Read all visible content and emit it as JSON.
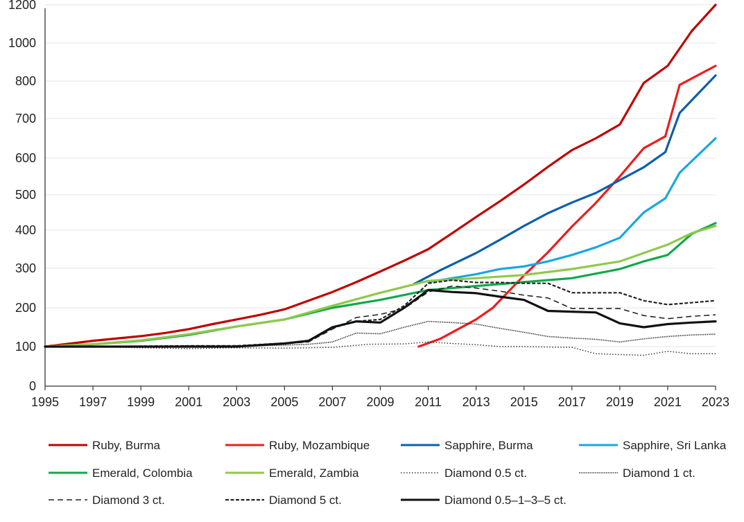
{
  "chart_data": {
    "type": "line",
    "title": "",
    "xlabel": "",
    "ylabel": "",
    "xlim": [
      1995,
      2023
    ],
    "ylim": [
      0,
      1200
    ],
    "x_ticks": [
      "1995",
      "1997",
      "1999",
      "2001",
      "2003",
      "2005",
      "2007",
      "2009",
      "2011",
      "2013",
      "2015",
      "2017",
      "2019",
      "2021",
      "2023"
    ],
    "y_ticks": [
      "0",
      "100",
      "200",
      "300",
      "400",
      "500",
      "600",
      "700",
      "800",
      "1000",
      "1200"
    ],
    "grid": "horizontal",
    "legend_position": "bottom",
    "series": [
      {
        "name": "Ruby, Burma",
        "color": "#c00000",
        "style": "solid",
        "width": 3.2,
        "points": [
          [
            1995,
            100
          ],
          [
            1997,
            115
          ],
          [
            1999,
            127
          ],
          [
            2000,
            135
          ],
          [
            2001,
            145
          ],
          [
            2002,
            158
          ],
          [
            2003,
            170
          ],
          [
            2004,
            182
          ],
          [
            2005,
            196
          ],
          [
            2006,
            218
          ],
          [
            2007,
            240
          ],
          [
            2008,
            265
          ],
          [
            2009,
            292
          ],
          [
            2010,
            320
          ],
          [
            2011,
            350
          ],
          [
            2012,
            392
          ],
          [
            2013,
            437
          ],
          [
            2014,
            482
          ],
          [
            2015,
            528
          ],
          [
            2016,
            576
          ],
          [
            2017,
            620
          ],
          [
            2018,
            650
          ],
          [
            2019,
            685
          ],
          [
            2020,
            795
          ],
          [
            2021,
            880
          ],
          [
            2022,
            1062
          ],
          [
            2023,
            1200
          ]
        ]
      },
      {
        "name": "Ruby, Mozambique",
        "color": "#ee1c1c",
        "style": "solid",
        "width": 3.2,
        "points": [
          [
            2010.6,
            100
          ],
          [
            2011.5,
            120
          ],
          [
            2013,
            170
          ],
          [
            2013.7,
            200
          ],
          [
            2015,
            282
          ],
          [
            2016,
            342
          ],
          [
            2017,
            410
          ],
          [
            2018,
            477
          ],
          [
            2019,
            550
          ],
          [
            2020,
            625
          ],
          [
            2020.9,
            655
          ],
          [
            2021.5,
            790
          ],
          [
            2023,
            880
          ]
        ]
      },
      {
        "name": "Sapphire, Burma",
        "color": "#0b5fad",
        "style": "solid",
        "width": 3.2,
        "points": [
          [
            2010.4,
            260
          ],
          [
            2011.5,
            295
          ],
          [
            2013,
            340
          ],
          [
            2014,
            375
          ],
          [
            2015,
            412
          ],
          [
            2016,
            448
          ],
          [
            2017,
            478
          ],
          [
            2018,
            505
          ],
          [
            2019,
            540
          ],
          [
            2020,
            575
          ],
          [
            2020.9,
            615
          ],
          [
            2021.5,
            715
          ],
          [
            2023,
            830
          ]
        ]
      },
      {
        "name": "Sapphire, Sri Lanka",
        "color": "#1aa6e0",
        "style": "solid",
        "width": 3.2,
        "points": [
          [
            2011,
            265
          ],
          [
            2012,
            275
          ],
          [
            2013,
            285
          ],
          [
            2014,
            298
          ],
          [
            2015,
            305
          ],
          [
            2016,
            318
          ],
          [
            2017,
            335
          ],
          [
            2018,
            355
          ],
          [
            2019,
            380
          ],
          [
            2020,
            450
          ],
          [
            2020.9,
            490
          ],
          [
            2021.5,
            560
          ],
          [
            2023,
            650
          ]
        ]
      },
      {
        "name": "Emerald, Colombia",
        "color": "#12a84a",
        "style": "solid",
        "width": 3.2,
        "points": [
          [
            1995,
            100
          ],
          [
            1997,
            106
          ],
          [
            1999,
            115
          ],
          [
            2001,
            130
          ],
          [
            2003,
            152
          ],
          [
            2005,
            170
          ],
          [
            2007,
            200
          ],
          [
            2009,
            220
          ],
          [
            2011,
            245
          ],
          [
            2013,
            255
          ],
          [
            2015,
            265
          ],
          [
            2017,
            275
          ],
          [
            2019,
            298
          ],
          [
            2020,
            318
          ],
          [
            2021,
            335
          ],
          [
            2022,
            390
          ],
          [
            2023,
            420
          ]
        ]
      },
      {
        "name": "Emerald, Zambia",
        "color": "#90c84a",
        "style": "solid",
        "width": 3.2,
        "points": [
          [
            1995,
            100
          ],
          [
            1997,
            106
          ],
          [
            1999,
            116
          ],
          [
            2001,
            132
          ],
          [
            2003,
            152
          ],
          [
            2005,
            170
          ],
          [
            2007,
            205
          ],
          [
            2009,
            238
          ],
          [
            2011,
            268
          ],
          [
            2013,
            275
          ],
          [
            2015,
            283
          ],
          [
            2017,
            298
          ],
          [
            2019,
            318
          ],
          [
            2020,
            340
          ],
          [
            2021,
            362
          ],
          [
            2022,
            392
          ],
          [
            2023,
            412
          ]
        ]
      },
      {
        "name": "Diamond 0.5 ct.",
        "color": "#333333",
        "style": "dotted",
        "width": 1.5,
        "points": [
          [
            1995,
            100
          ],
          [
            1997,
            100
          ],
          [
            1999,
            97
          ],
          [
            2001,
            95
          ],
          [
            2003,
            97
          ],
          [
            2005,
            96
          ],
          [
            2007,
            98
          ],
          [
            2008.5,
            106
          ],
          [
            2010,
            107
          ],
          [
            2011,
            112
          ],
          [
            2012,
            108
          ],
          [
            2013,
            105
          ],
          [
            2014,
            100
          ],
          [
            2015,
            100
          ],
          [
            2016,
            99
          ],
          [
            2017,
            98
          ],
          [
            2018,
            82
          ],
          [
            2019,
            80
          ],
          [
            2020,
            78
          ],
          [
            2021,
            88
          ],
          [
            2022,
            82
          ],
          [
            2023,
            82
          ]
        ]
      },
      {
        "name": "Diamond 1 ct.",
        "color": "#222222",
        "style": "densedot",
        "width": 1.6,
        "points": [
          [
            1995,
            100
          ],
          [
            1997,
            100
          ],
          [
            1999,
            100
          ],
          [
            2001,
            100
          ],
          [
            2003,
            101
          ],
          [
            2005,
            104
          ],
          [
            2006,
            106
          ],
          [
            2007,
            112
          ],
          [
            2008,
            135
          ],
          [
            2009,
            133
          ],
          [
            2010,
            150
          ],
          [
            2011,
            165
          ],
          [
            2012,
            162
          ],
          [
            2013,
            158
          ],
          [
            2014,
            147
          ],
          [
            2015,
            137
          ],
          [
            2016,
            126
          ],
          [
            2017,
            122
          ],
          [
            2018,
            119
          ],
          [
            2019,
            112
          ],
          [
            2020,
            120
          ],
          [
            2021,
            126
          ],
          [
            2022,
            130
          ],
          [
            2023,
            132
          ]
        ]
      },
      {
        "name": "Diamond 3 ct.",
        "color": "#222222",
        "style": "dashed",
        "width": 1.6,
        "points": [
          [
            1995,
            100
          ],
          [
            1997,
            100
          ],
          [
            1999,
            100
          ],
          [
            2001,
            102
          ],
          [
            2003,
            102
          ],
          [
            2005,
            108
          ],
          [
            2006,
            112
          ],
          [
            2007,
            145
          ],
          [
            2008,
            175
          ],
          [
            2009,
            183
          ],
          [
            2010,
            198
          ],
          [
            2011,
            240
          ],
          [
            2012,
            255
          ],
          [
            2013,
            250
          ],
          [
            2014,
            242
          ],
          [
            2015,
            232
          ],
          [
            2016,
            225
          ],
          [
            2017,
            198
          ],
          [
            2018,
            198
          ],
          [
            2019,
            198
          ],
          [
            2020,
            180
          ],
          [
            2021,
            172
          ],
          [
            2022,
            178
          ],
          [
            2023,
            182
          ]
        ]
      },
      {
        "name": "Diamond 5 ct.",
        "color": "#222222",
        "style": "dashed5",
        "width": 2.2,
        "points": [
          [
            1995,
            100
          ],
          [
            1997,
            100
          ],
          [
            1999,
            101
          ],
          [
            2001,
            102
          ],
          [
            2003,
            102
          ],
          [
            2005,
            109
          ],
          [
            2006,
            113
          ],
          [
            2007,
            148
          ],
          [
            2008,
            165
          ],
          [
            2009,
            170
          ],
          [
            2010,
            205
          ],
          [
            2011,
            262
          ],
          [
            2012,
            270
          ],
          [
            2013,
            264
          ],
          [
            2014,
            264
          ],
          [
            2015,
            262
          ],
          [
            2016,
            262
          ],
          [
            2017,
            238
          ],
          [
            2018,
            238
          ],
          [
            2019,
            238
          ],
          [
            2020,
            218
          ],
          [
            2021,
            208
          ],
          [
            2022,
            213
          ],
          [
            2023,
            218
          ]
        ]
      },
      {
        "name": "Diamond 0.5–1–3–5 ct.",
        "color": "#111111",
        "style": "solid",
        "width": 3.2,
        "points": [
          [
            1995,
            100
          ],
          [
            1997,
            100
          ],
          [
            1999,
            100
          ],
          [
            2001,
            100
          ],
          [
            2003,
            100
          ],
          [
            2005,
            108
          ],
          [
            2006,
            115
          ],
          [
            2007,
            150
          ],
          [
            2008,
            165
          ],
          [
            2009,
            162
          ],
          [
            2010,
            200
          ],
          [
            2011,
            245
          ],
          [
            2012,
            240
          ],
          [
            2013,
            237
          ],
          [
            2014,
            228
          ],
          [
            2015,
            220
          ],
          [
            2016,
            192
          ],
          [
            2017,
            190
          ],
          [
            2018,
            188
          ],
          [
            2019,
            160
          ],
          [
            2020,
            150
          ],
          [
            2021,
            158
          ],
          [
            2022,
            162
          ],
          [
            2023,
            165
          ]
        ]
      }
    ]
  }
}
